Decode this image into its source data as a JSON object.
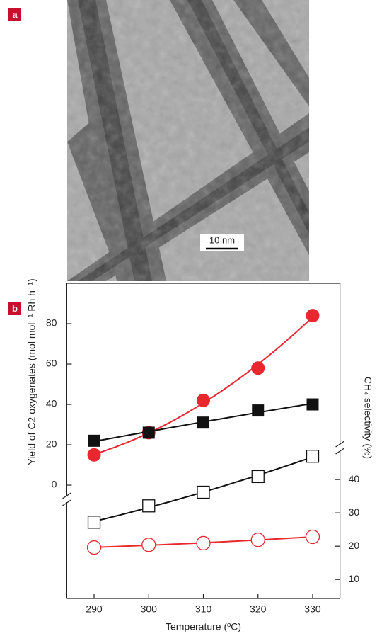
{
  "panel_labels": [
    "a",
    "b"
  ],
  "scale_bar": "10 nm",
  "chart_data": {
    "type": "scatter",
    "x_label": "Temperature (ºC)",
    "y_label": "Yield of C2 oxygenates (mol mol⁻¹ Rh h⁻¹)",
    "y2_label": "CH₄ selectivity (%)",
    "x": [
      290,
      300,
      310,
      320,
      330
    ],
    "xlim": [
      285,
      335
    ],
    "xticks": [
      290,
      300,
      310,
      320,
      330
    ],
    "ylim": [
      -7,
      100
    ],
    "yticks": [
      0,
      20,
      40,
      60,
      80
    ],
    "y2lim": [
      4.3,
      49.6
    ],
    "y2ticks": [
      10,
      20,
      30,
      40
    ],
    "fit_lines": true,
    "series": [
      {
        "color": "#e8282e",
        "marker": "filled-circle",
        "values": [
          15,
          26,
          42,
          58,
          84
        ]
      },
      {
        "color": "#111111",
        "marker": "filled-square",
        "values": [
          22,
          26,
          31,
          37,
          40
        ]
      },
      {
        "color": "#111111",
        "marker": "open-square",
        "axis": "y2",
        "values": [
          27.2,
          32.1,
          36.2,
          40.9,
          47
        ]
      },
      {
        "color": "#e8282e",
        "marker": "open-circle",
        "axis": "y2",
        "values": [
          19.6,
          20.4,
          20.9,
          21.9,
          22.8
        ]
      }
    ]
  }
}
